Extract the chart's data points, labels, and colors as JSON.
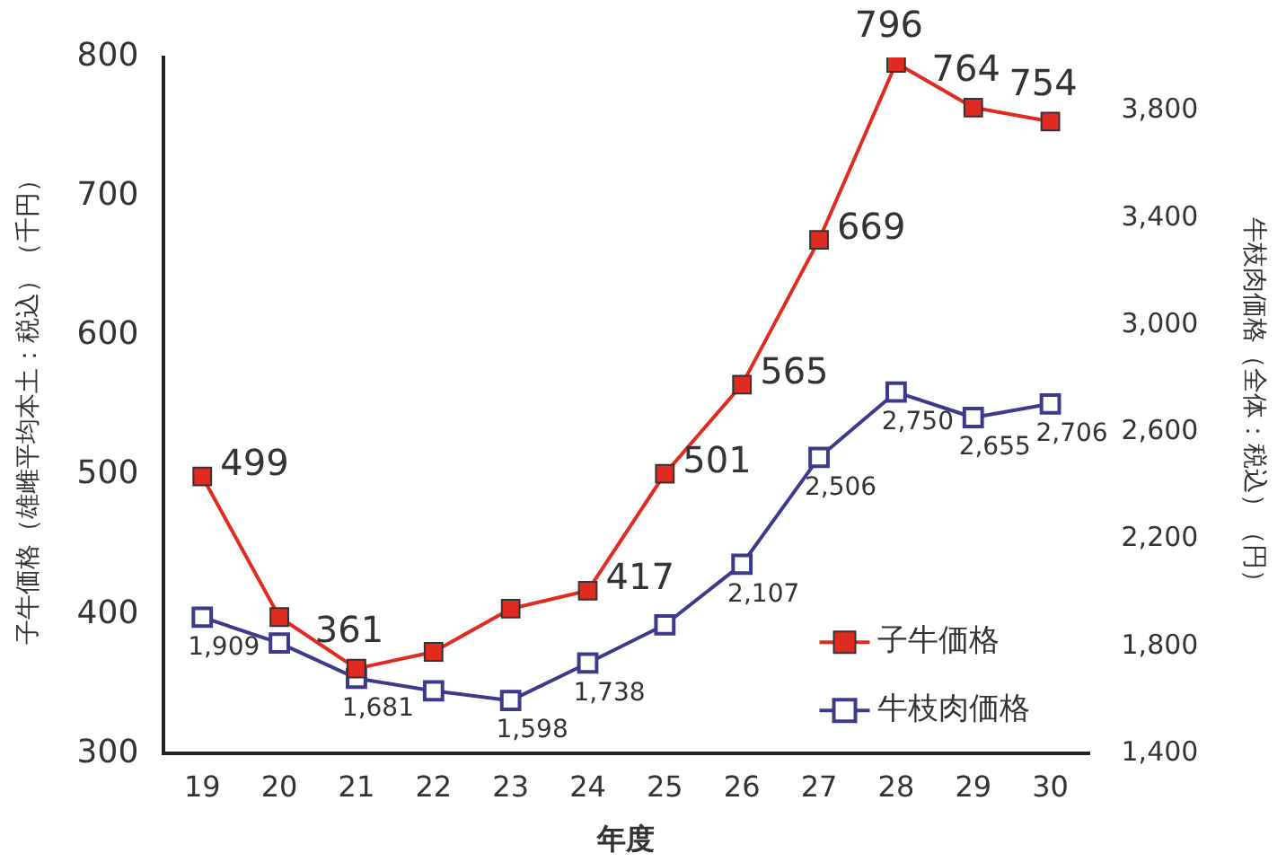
{
  "chart_data": {
    "type": "line",
    "xlabel": "年度",
    "ylabel": "子牛価格（雄雌平均本土：税込）（千円）",
    "y2label": "牛枝肉価格（全体：税込）（円）",
    "categories": [
      "19",
      "20",
      "21",
      "22",
      "23",
      "24",
      "25",
      "26",
      "27",
      "28",
      "29",
      "30"
    ],
    "series": [
      {
        "name": "子牛価格",
        "color": "#e02b20",
        "values": [
          499,
          398,
          361,
          373,
          404,
          417,
          501,
          565,
          669,
          796,
          764,
          754
        ],
        "value_labels": [
          "499",
          null,
          "361",
          null,
          null,
          "417",
          "501",
          "565",
          "669",
          "796",
          "764",
          "754"
        ]
      },
      {
        "name": "牛枝肉価格",
        "color": "#3d3a8c",
        "axis": "y2",
        "values": [
          1909,
          1813,
          1681,
          1634,
          1598,
          1738,
          1881,
          2107,
          2506,
          2750,
          2655,
          2706
        ],
        "value_labels": [
          "1,909",
          null,
          "1,681",
          null,
          "1,598",
          "1,738",
          null,
          "2,107",
          "2,506",
          "2,750",
          "2,655",
          "2,706"
        ]
      }
    ],
    "ylim": [
      300,
      800
    ],
    "yticks": [
      300,
      400,
      500,
      600,
      700,
      800
    ],
    "y2lim": [
      1400,
      4000
    ],
    "y2ticks": [
      {
        "value": 1400,
        "label": "1,400"
      },
      {
        "value": 1800,
        "label": "1,800"
      },
      {
        "value": 2200,
        "label": "2,200"
      },
      {
        "value": 2600,
        "label": "2,600"
      },
      {
        "value": 3000,
        "label": "3,000"
      },
      {
        "value": 3400,
        "label": "3,400"
      },
      {
        "value": 3800,
        "label": "3,800"
      }
    ],
    "marker": "square",
    "grid": false,
    "legend": "bottom right"
  }
}
